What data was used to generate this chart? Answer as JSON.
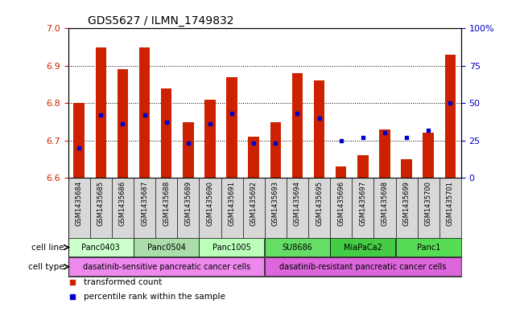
{
  "title": "GDS5627 / ILMN_1749832",
  "samples": [
    "GSM1435684",
    "GSM1435685",
    "GSM1435686",
    "GSM1435687",
    "GSM1435688",
    "GSM1435689",
    "GSM1435690",
    "GSM1435691",
    "GSM1435692",
    "GSM1435693",
    "GSM1435694",
    "GSM1435695",
    "GSM1435696",
    "GSM1435697",
    "GSM1435698",
    "GSM1435699",
    "GSM1435700",
    "GSM1435701"
  ],
  "transformed_counts": [
    6.8,
    6.95,
    6.89,
    6.95,
    6.84,
    6.75,
    6.81,
    6.87,
    6.71,
    6.75,
    6.88,
    6.86,
    6.63,
    6.66,
    6.73,
    6.65,
    6.72,
    6.93
  ],
  "percentile_ranks": [
    20,
    42,
    36,
    42,
    37,
    23,
    36,
    43,
    23,
    23,
    43,
    40,
    25,
    27,
    30,
    27,
    32,
    50
  ],
  "ylim_left": [
    6.6,
    7.0
  ],
  "ylim_right": [
    0,
    100
  ],
  "yticks_left": [
    6.6,
    6.7,
    6.8,
    6.9,
    7.0
  ],
  "yticks_right": [
    0,
    25,
    50,
    75,
    100
  ],
  "bar_color": "#cc2200",
  "marker_color": "#0000cc",
  "cell_lines": [
    {
      "name": "Panc0403",
      "start": 0,
      "end": 3,
      "color": "#ccffcc"
    },
    {
      "name": "Panc0504",
      "start": 3,
      "end": 6,
      "color": "#aaddaa"
    },
    {
      "name": "Panc1005",
      "start": 6,
      "end": 9,
      "color": "#bbffbb"
    },
    {
      "name": "SU8686",
      "start": 9,
      "end": 12,
      "color": "#66dd66"
    },
    {
      "name": "MiaPaCa2",
      "start": 12,
      "end": 15,
      "color": "#44cc44"
    },
    {
      "name": "Panc1",
      "start": 15,
      "end": 18,
      "color": "#55dd55"
    }
  ],
  "cell_types": [
    {
      "name": "dasatinib-sensitive pancreatic cancer cells",
      "start": 0,
      "end": 9,
      "color": "#ee88ee"
    },
    {
      "name": "dasatinib-resistant pancreatic cancer cells",
      "start": 9,
      "end": 18,
      "color": "#dd66dd"
    }
  ],
  "legend_items": [
    {
      "label": "transformed count",
      "color": "#cc2200"
    },
    {
      "label": "percentile rank within the sample",
      "color": "#0000cc"
    }
  ],
  "grid_color": "black",
  "bg_color": "white",
  "bar_width": 0.5,
  "ylabel_left_color": "#cc2200",
  "ylabel_right_color": "#0000cc",
  "tick_label_fontsize": 6,
  "cell_line_label": "cell line",
  "cell_type_label": "cell type"
}
